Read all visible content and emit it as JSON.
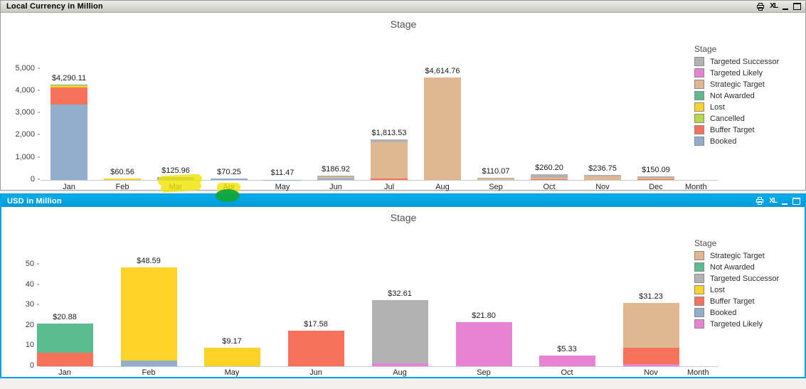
{
  "desktop": {
    "background": "#f1f0ee"
  },
  "stage_colors": {
    "Targeted Successor": "#b2b2b2",
    "Targeted Likely": "#e783d2",
    "Strategic Target": "#dfb791",
    "Not Awarded": "#5abc8f",
    "Lost": "#fdd32a",
    "Cancelled": "#b7d84b",
    "Buffer Target": "#f8715a",
    "Booked": "#91aecd"
  },
  "windows": [
    {
      "title": "Local Currency in Million",
      "icons": {
        "export_label": "XL"
      }
    },
    {
      "title": "USD in Million",
      "icons": {
        "export_label": "XL"
      }
    }
  ],
  "chart_data": [
    {
      "type": "bar",
      "stacked": true,
      "title": "Stage",
      "x_axis_title": "Month",
      "legend_title": "Stage",
      "legend_position": "right",
      "grid": false,
      "ylim": [
        0,
        5000
      ],
      "y_tick_values": [
        0,
        1000,
        2000,
        3000,
        4000,
        5000
      ],
      "y_tick_labels": [
        "0",
        "1,000",
        "2,000",
        "3,000",
        "4,000",
        "5,000"
      ],
      "legend": [
        "Targeted Successor",
        "Targeted Likely",
        "Strategic Target",
        "Not Awarded",
        "Lost",
        "Cancelled",
        "Buffer Target",
        "Booked"
      ],
      "categories": [
        "Jan",
        "Feb",
        "Mar",
        "Apr",
        "May",
        "Jun",
        "Jul",
        "Aug",
        "Sep",
        "Oct",
        "Nov",
        "Dec"
      ],
      "totals": [
        4290.11,
        60.56,
        125.96,
        70.25,
        11.47,
        186.92,
        1813.53,
        4614.76,
        110.07,
        260.2,
        236.75,
        150.09
      ],
      "bar_labels": [
        "$4,290.11",
        "$60.56",
        "$125.96",
        "$70.25",
        "$11.47",
        "$186.92",
        "$1,813.53",
        "$4,614.76",
        "$110.07",
        "$260.20",
        "$236.75",
        "$150.09"
      ],
      "segments": [
        [
          {
            "stage": "Booked",
            "value": 3400
          },
          {
            "stage": "Buffer Target",
            "value": 765
          },
          {
            "stage": "Lost",
            "value": 95
          },
          {
            "stage": "Not Awarded",
            "value": 30.11
          }
        ],
        [
          {
            "stage": "Lost",
            "value": 60.56
          }
        ],
        [
          {
            "stage": "Booked",
            "value": 125.96
          }
        ],
        [
          {
            "stage": "Booked",
            "value": 70.25
          }
        ],
        [
          {
            "stage": "Booked",
            "value": 11.47
          }
        ],
        [
          {
            "stage": "Booked",
            "value": 55
          },
          {
            "stage": "Strategic Target",
            "value": 75
          },
          {
            "stage": "Targeted Successor",
            "value": 56.92
          }
        ],
        [
          {
            "stage": "Buffer Target",
            "value": 60
          },
          {
            "stage": "Strategic Target",
            "value": 1633.53
          },
          {
            "stage": "Targeted Successor",
            "value": 120
          }
        ],
        [
          {
            "stage": "Strategic Target",
            "value": 4614.76
          }
        ],
        [
          {
            "stage": "Strategic Target",
            "value": 72
          },
          {
            "stage": "Targeted Successor",
            "value": 38.07
          }
        ],
        [
          {
            "stage": "Buffer Target",
            "value": 25
          },
          {
            "stage": "Strategic Target",
            "value": 60
          },
          {
            "stage": "Targeted Successor",
            "value": 175.2
          }
        ],
        [
          {
            "stage": "Strategic Target",
            "value": 165
          },
          {
            "stage": "Targeted Successor",
            "value": 71.75
          }
        ],
        [
          {
            "stage": "Buffer Target",
            "value": 30
          },
          {
            "stage": "Strategic Target",
            "value": 60
          },
          {
            "stage": "Targeted Successor",
            "value": 60.09
          }
        ]
      ]
    },
    {
      "type": "bar",
      "stacked": true,
      "title": "Stage",
      "x_axis_title": "Month",
      "legend_title": "Stage",
      "legend_position": "right",
      "grid": false,
      "ylim": [
        0,
        50
      ],
      "y_tick_values": [
        0,
        10,
        20,
        30,
        40,
        50
      ],
      "y_tick_labels": [
        "0",
        "10",
        "20",
        "30",
        "40",
        "50"
      ],
      "legend": [
        "Strategic Target",
        "Not Awarded",
        "Targeted Successor",
        "Lost",
        "Buffer Target",
        "Booked",
        "Targeted Likely"
      ],
      "categories": [
        "Jan",
        "Feb",
        "May",
        "Jun",
        "Aug",
        "Sep",
        "Oct",
        "Nov"
      ],
      "totals": [
        20.88,
        48.59,
        9.17,
        17.58,
        32.61,
        21.8,
        5.33,
        31.23
      ],
      "bar_labels": [
        "$20.88",
        "$48.59",
        "$9.17",
        "$17.58",
        "$32.61",
        "$21.80",
        "$5.33",
        "$31.23"
      ],
      "segments": [
        [
          {
            "stage": "Buffer Target",
            "value": 6.5
          },
          {
            "stage": "Not Awarded",
            "value": 14.38
          }
        ],
        [
          {
            "stage": "Booked",
            "value": 2.8
          },
          {
            "stage": "Lost",
            "value": 45.79
          }
        ],
        [
          {
            "stage": "Lost",
            "value": 9.17
          }
        ],
        [
          {
            "stage": "Buffer Target",
            "value": 17.58
          }
        ],
        [
          {
            "stage": "Targeted Likely",
            "value": 1.5
          },
          {
            "stage": "Targeted Successor",
            "value": 31.11
          }
        ],
        [
          {
            "stage": "Targeted Likely",
            "value": 21.8
          }
        ],
        [
          {
            "stage": "Targeted Likely",
            "value": 5.33
          }
        ],
        [
          {
            "stage": "Targeted Likely",
            "value": 1
          },
          {
            "stage": "Buffer Target",
            "value": 8
          },
          {
            "stage": "Strategic Target",
            "value": 22.23
          }
        ]
      ]
    }
  ],
  "annotations": [
    {
      "id": "mar-highlight",
      "type": "highlighter-stroke",
      "color": "#f2e400",
      "over": "Mar"
    },
    {
      "id": "apr-highlight",
      "type": "highlighter-stroke",
      "color": "#f2e400",
      "over": "Apr"
    },
    {
      "id": "apr-green-mark",
      "type": "marker-blob",
      "color": "#12a43b",
      "over": "Apr"
    }
  ]
}
